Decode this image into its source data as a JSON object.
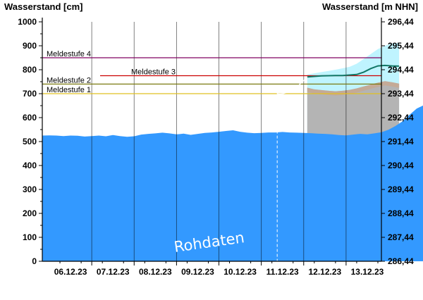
{
  "chart_data": {
    "type": "area",
    "y_left_title": "Wasserstand [cm]",
    "y_right_title": "Wasserstand [m NHN]",
    "y_left_ticks": [
      "0",
      "100",
      "200",
      "300",
      "400",
      "500",
      "600",
      "700",
      "800",
      "900",
      "1000"
    ],
    "y_right_ticks": [
      "286,44",
      "287,44",
      "288,44",
      "289,44",
      "290,44",
      "291,44",
      "292,44",
      "293,44",
      "294,44",
      "295,44",
      "296,44"
    ],
    "ylim": [
      0,
      1000
    ],
    "x_ticks": [
      "06.12.23",
      "07.12.23",
      "08.12.23",
      "09.12.23",
      "10.12.23",
      "11.12.23",
      "12.12.23",
      "13.12.23"
    ],
    "x_start": "05.12.23 20:00",
    "x_end": "13.12.23 20:00",
    "x_step_hours": 4,
    "now": "11.12.23 09:00",
    "forecast_start": "12.12.23 02:00",
    "watermark": "Rohdaten",
    "colors": {
      "measured": "#3399ff",
      "forecast_band": "#b4b4b4",
      "upper_band": "#bff4ff",
      "forecast_line": "#117766",
      "meldestufe_1": "#e0c020",
      "meldestufe_2": "#7a7a10",
      "meldestufe_3": "#cc0000",
      "meldestufe_4": "#800060"
    },
    "meldestufen": [
      {
        "name": "Meldestufe 1",
        "value": 700
      },
      {
        "name": "Meldestufe 2",
        "value": 740
      },
      {
        "name": "Meldestufe 3",
        "value": 775
      },
      {
        "name": "Meldestufe 4",
        "value": 850
      }
    ],
    "series": [
      {
        "values": [
          525,
          526,
          525,
          523,
          525,
          524,
          521,
          523,
          525,
          522,
          527,
          523,
          520,
          522,
          529,
          532,
          534,
          537,
          534,
          530,
          533,
          528,
          532,
          536,
          538,
          541,
          544,
          547,
          541,
          537,
          535,
          536,
          538,
          538,
          540,
          538,
          537,
          536,
          535,
          533,
          532,
          530,
          527,
          526,
          529,
          532,
          530,
          534,
          539,
          549,
          565,
          585,
          612,
          638,
          652,
          645,
          652,
          670,
          684,
          695,
          705,
          722,
          738,
          755,
          762,
          760
        ]
      },
      {
        "values": [
          725,
          718,
          715,
          712,
          710,
          712,
          716,
          722,
          730,
          738,
          746,
          752,
          748,
          742
        ]
      },
      {
        "values": [
          770,
          772,
          774,
          775,
          776,
          776,
          778,
          780,
          790,
          805,
          816,
          818,
          816,
          815
        ]
      },
      {
        "values": [
          780,
          785,
          790,
          795,
          800,
          806,
          812,
          825,
          845,
          866,
          886,
          900,
          910,
          912
        ]
      }
    ]
  }
}
